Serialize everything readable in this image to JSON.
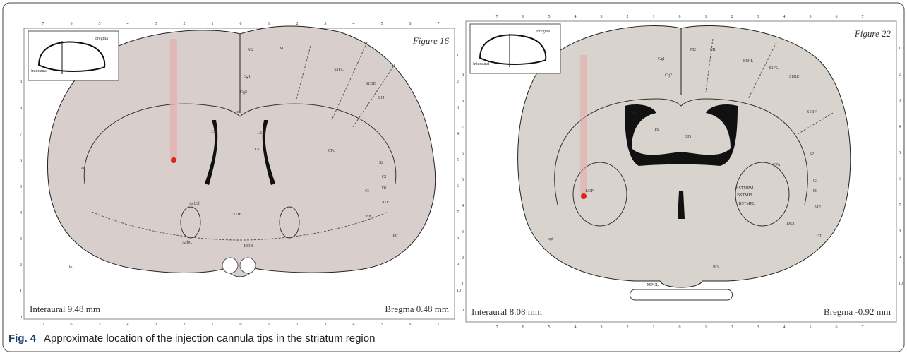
{
  "figure": {
    "panels": [
      {
        "title": "Figure 16",
        "interaural": "Interaural 9.48 mm",
        "bregma": "Bregma 0.48 mm",
        "inset_labels": [
          "Bregma",
          "Interaural"
        ],
        "scale_top": [
          "7",
          "6",
          "5",
          "4",
          "3",
          "2",
          "1",
          "0",
          "1",
          "2",
          "3",
          "4",
          "5",
          "6",
          "7"
        ],
        "scale_left": [
          "9",
          "8",
          "7",
          "6",
          "5",
          "4",
          "3",
          "2",
          "1",
          "0"
        ],
        "scale_right": [
          "1",
          "2",
          "3",
          "4",
          "5",
          "6",
          "7",
          "8",
          "9",
          "10"
        ],
        "regions": [
          "M2",
          "M1",
          "S1FL",
          "S1DZ",
          "S1J",
          "Cg1",
          "Cg2",
          "cc",
          "LV",
          "LSD",
          "LSI",
          "CPu",
          "AcbSh",
          "AcbC",
          "VDB",
          "HDB",
          "S2",
          "GI",
          "DI",
          "AIV",
          "Pir",
          "DEn",
          "Cl",
          "lo",
          "ec"
        ]
      },
      {
        "title": "Figure 22",
        "interaural": "Interaural 8.08 mm",
        "bregma": "Bregma -0.92 mm",
        "inset_labels": [
          "Bregma",
          "Interaural"
        ],
        "scale_top": [
          "7",
          "6",
          "5",
          "4",
          "3",
          "2",
          "1",
          "0",
          "1",
          "2",
          "3",
          "4",
          "5",
          "6",
          "7"
        ],
        "scale_left": [
          "9",
          "8",
          "7",
          "6",
          "5",
          "4",
          "3",
          "2",
          "1",
          "0"
        ],
        "scale_right": [
          "1",
          "2",
          "3",
          "4",
          "5",
          "6",
          "7",
          "8",
          "9",
          "10"
        ],
        "regions": [
          "M2",
          "M1",
          "Cg1",
          "Cg2",
          "S1HL",
          "S1FL",
          "S1DZ",
          "S1BF",
          "LV",
          "TS",
          "SFi",
          "CPu",
          "LGP",
          "BSTMPM",
          "BSTMPI",
          "BSTMPL",
          "S2",
          "GI",
          "DI",
          "AIP",
          "Pir",
          "DEn",
          "MPOL",
          "LPO",
          "opt"
        ]
      }
    ],
    "caption": {
      "label": "Fig. 4",
      "text": "Approximate location of the injection cannula tips in the striatum region"
    }
  }
}
